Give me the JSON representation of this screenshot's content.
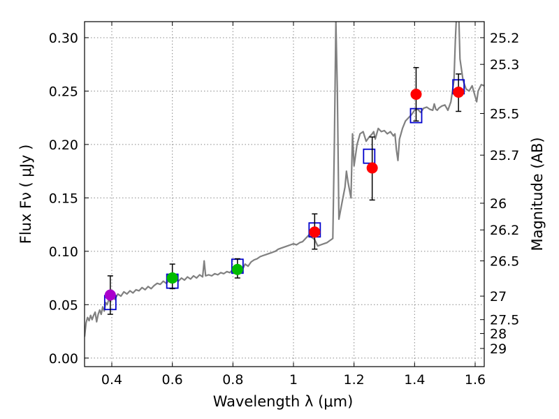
{
  "chart_data": {
    "type": "scatter",
    "xlabel": "Wavelength  λ (μm)",
    "ylabel": "Flux  Fν  ( μJy )",
    "y2label": "Magnitude (AB)",
    "xlim": [
      0.31,
      1.63
    ],
    "ylim": [
      -0.008,
      0.315
    ],
    "grid": true,
    "xticks": [
      0.4,
      0.6,
      0.8,
      1.0,
      1.2,
      1.4,
      1.6
    ],
    "xtick_labels": [
      "0.4",
      "0.6",
      "0.8",
      "1",
      "1.2",
      "1.4",
      "1.6"
    ],
    "yticks": [
      0.0,
      0.05,
      0.1,
      0.15,
      0.2,
      0.25,
      0.3
    ],
    "ytick_labels": [
      "0.00",
      "0.05",
      "0.10",
      "0.15",
      "0.20",
      "0.25",
      "0.30"
    ],
    "y2ticks": [
      {
        "label": "25.2",
        "flux": 0.3
      },
      {
        "label": "25.3",
        "flux": 0.275
      },
      {
        "label": "25.5",
        "flux": 0.229
      },
      {
        "label": "25.7",
        "flux": 0.19
      },
      {
        "label": "26",
        "flux": 0.145
      },
      {
        "label": "26.2",
        "flux": 0.12
      },
      {
        "label": "26.5",
        "flux": 0.091
      },
      {
        "label": "27",
        "flux": 0.058
      },
      {
        "label": "27.5",
        "flux": 0.036
      },
      {
        "label": "28",
        "flux": 0.023
      },
      {
        "label": "29",
        "flux": 0.009
      }
    ],
    "colors": {
      "model": "#808080",
      "model_flux": "#0000cc",
      "purple": "#aa00cc",
      "green": "#00bb00",
      "red": "#ff0000",
      "errorbar": "#000000",
      "grid": "#888888"
    },
    "series": [
      {
        "name": "model spectrum",
        "kind": "line",
        "points": [
          [
            0.31,
            0.02
          ],
          [
            0.315,
            0.033
          ],
          [
            0.32,
            0.038
          ],
          [
            0.325,
            0.035
          ],
          [
            0.33,
            0.04
          ],
          [
            0.335,
            0.036
          ],
          [
            0.34,
            0.04
          ],
          [
            0.345,
            0.043
          ],
          [
            0.35,
            0.034
          ],
          [
            0.355,
            0.041
          ],
          [
            0.36,
            0.045
          ],
          [
            0.365,
            0.041
          ],
          [
            0.37,
            0.048
          ],
          [
            0.375,
            0.044
          ],
          [
            0.38,
            0.052
          ],
          [
            0.385,
            0.05
          ],
          [
            0.39,
            0.055
          ],
          [
            0.395,
            0.053
          ],
          [
            0.4,
            0.057
          ],
          [
            0.41,
            0.055
          ],
          [
            0.42,
            0.06
          ],
          [
            0.43,
            0.058
          ],
          [
            0.44,
            0.062
          ],
          [
            0.45,
            0.06
          ],
          [
            0.46,
            0.063
          ],
          [
            0.47,
            0.061
          ],
          [
            0.48,
            0.064
          ],
          [
            0.49,
            0.063
          ],
          [
            0.5,
            0.066
          ],
          [
            0.51,
            0.064
          ],
          [
            0.52,
            0.067
          ],
          [
            0.53,
            0.065
          ],
          [
            0.54,
            0.068
          ],
          [
            0.55,
            0.07
          ],
          [
            0.56,
            0.069
          ],
          [
            0.57,
            0.072
          ],
          [
            0.58,
            0.07
          ],
          [
            0.59,
            0.073
          ],
          [
            0.6,
            0.071
          ],
          [
            0.61,
            0.074
          ],
          [
            0.62,
            0.072
          ],
          [
            0.63,
            0.075
          ],
          [
            0.64,
            0.073
          ],
          [
            0.65,
            0.076
          ],
          [
            0.66,
            0.074
          ],
          [
            0.67,
            0.077
          ],
          [
            0.68,
            0.075
          ],
          [
            0.69,
            0.078
          ],
          [
            0.7,
            0.076
          ],
          [
            0.705,
            0.091
          ],
          [
            0.71,
            0.077
          ],
          [
            0.72,
            0.078
          ],
          [
            0.73,
            0.077
          ],
          [
            0.74,
            0.079
          ],
          [
            0.75,
            0.078
          ],
          [
            0.76,
            0.08
          ],
          [
            0.77,
            0.079
          ],
          [
            0.78,
            0.081
          ],
          [
            0.79,
            0.08
          ],
          [
            0.8,
            0.083
          ],
          [
            0.81,
            0.081
          ],
          [
            0.82,
            0.084
          ],
          [
            0.83,
            0.082
          ],
          [
            0.84,
            0.088
          ],
          [
            0.85,
            0.086
          ],
          [
            0.86,
            0.09
          ],
          [
            0.87,
            0.092
          ],
          [
            0.88,
            0.093
          ],
          [
            0.89,
            0.095
          ],
          [
            0.9,
            0.096
          ],
          [
            0.91,
            0.097
          ],
          [
            0.92,
            0.098
          ],
          [
            0.93,
            0.099
          ],
          [
            0.94,
            0.1
          ],
          [
            0.95,
            0.102
          ],
          [
            0.96,
            0.103
          ],
          [
            0.97,
            0.104
          ],
          [
            0.98,
            0.105
          ],
          [
            0.99,
            0.106
          ],
          [
            1.0,
            0.107
          ],
          [
            1.01,
            0.106
          ],
          [
            1.02,
            0.108
          ],
          [
            1.03,
            0.109
          ],
          [
            1.04,
            0.112
          ],
          [
            1.05,
            0.115
          ],
          [
            1.06,
            0.113
          ],
          [
            1.07,
            0.111
          ],
          [
            1.08,
            0.105
          ],
          [
            1.09,
            0.106
          ],
          [
            1.1,
            0.107
          ],
          [
            1.11,
            0.108
          ],
          [
            1.12,
            0.11
          ],
          [
            1.13,
            0.112
          ],
          [
            1.135,
            0.2
          ],
          [
            1.14,
            0.315
          ],
          [
            1.145,
            0.25
          ],
          [
            1.15,
            0.13
          ],
          [
            1.16,
            0.145
          ],
          [
            1.17,
            0.16
          ],
          [
            1.175,
            0.175
          ],
          [
            1.18,
            0.165
          ],
          [
            1.19,
            0.15
          ],
          [
            1.195,
            0.21
          ],
          [
            1.2,
            0.18
          ],
          [
            1.21,
            0.2
          ],
          [
            1.22,
            0.21
          ],
          [
            1.23,
            0.212
          ],
          [
            1.24,
            0.203
          ],
          [
            1.25,
            0.207
          ],
          [
            1.26,
            0.21
          ],
          [
            1.265,
            0.212
          ],
          [
            1.27,
            0.205
          ],
          [
            1.28,
            0.215
          ],
          [
            1.29,
            0.212
          ],
          [
            1.3,
            0.213
          ],
          [
            1.31,
            0.21
          ],
          [
            1.32,
            0.212
          ],
          [
            1.33,
            0.208
          ],
          [
            1.335,
            0.21
          ],
          [
            1.34,
            0.195
          ],
          [
            1.345,
            0.185
          ],
          [
            1.35,
            0.205
          ],
          [
            1.36,
            0.215
          ],
          [
            1.37,
            0.222
          ],
          [
            1.38,
            0.225
          ],
          [
            1.39,
            0.228
          ],
          [
            1.4,
            0.232
          ],
          [
            1.41,
            0.233
          ],
          [
            1.42,
            0.23
          ],
          [
            1.43,
            0.234
          ],
          [
            1.44,
            0.235
          ],
          [
            1.45,
            0.233
          ],
          [
            1.46,
            0.232
          ],
          [
            1.465,
            0.238
          ],
          [
            1.47,
            0.233
          ],
          [
            1.475,
            0.232
          ],
          [
            1.48,
            0.234
          ],
          [
            1.49,
            0.236
          ],
          [
            1.5,
            0.237
          ],
          [
            1.51,
            0.232
          ],
          [
            1.52,
            0.24
          ],
          [
            1.53,
            0.26
          ],
          [
            1.535,
            0.3
          ],
          [
            1.54,
            0.33
          ],
          [
            1.545,
            0.33
          ],
          [
            1.55,
            0.28
          ],
          [
            1.56,
            0.26
          ],
          [
            1.57,
            0.252
          ],
          [
            1.58,
            0.25
          ],
          [
            1.59,
            0.255
          ],
          [
            1.6,
            0.245
          ],
          [
            1.605,
            0.24
          ],
          [
            1.61,
            0.25
          ],
          [
            1.62,
            0.256
          ],
          [
            1.63,
            0.255
          ]
        ]
      },
      {
        "name": "model flux (filter-integrated)",
        "kind": "open-square",
        "x": [
          0.395,
          0.6,
          0.815,
          1.07,
          1.25,
          1.405,
          1.545
        ],
        "y": [
          0.052,
          0.072,
          0.086,
          0.12,
          0.189,
          0.227,
          0.254
        ]
      },
      {
        "name": "photometry (error bars)",
        "kind": "errorbar",
        "x": [
          0.395,
          0.6,
          0.815,
          1.07,
          1.26,
          1.405,
          1.545
        ],
        "y": [
          0.059,
          0.075,
          0.083,
          0.118,
          0.178,
          0.247,
          0.249
        ],
        "yerr_low": [
          0.018,
          0.01,
          0.008,
          0.016,
          0.03,
          0.025,
          0.018
        ],
        "yerr_high": [
          0.018,
          0.013,
          0.01,
          0.017,
          0.029,
          0.025,
          0.017
        ]
      },
      {
        "name": "photometry purple",
        "kind": "marker",
        "color_key": "purple",
        "x": [
          0.395
        ],
        "y": [
          0.059
        ]
      },
      {
        "name": "photometry green",
        "kind": "marker",
        "color_key": "green",
        "x": [
          0.6,
          0.815
        ],
        "y": [
          0.075,
          0.083
        ]
      },
      {
        "name": "photometry red",
        "kind": "marker",
        "color_key": "red",
        "x": [
          1.07,
          1.26,
          1.405,
          1.545
        ],
        "y": [
          0.118,
          0.178,
          0.247,
          0.249
        ]
      }
    ]
  }
}
